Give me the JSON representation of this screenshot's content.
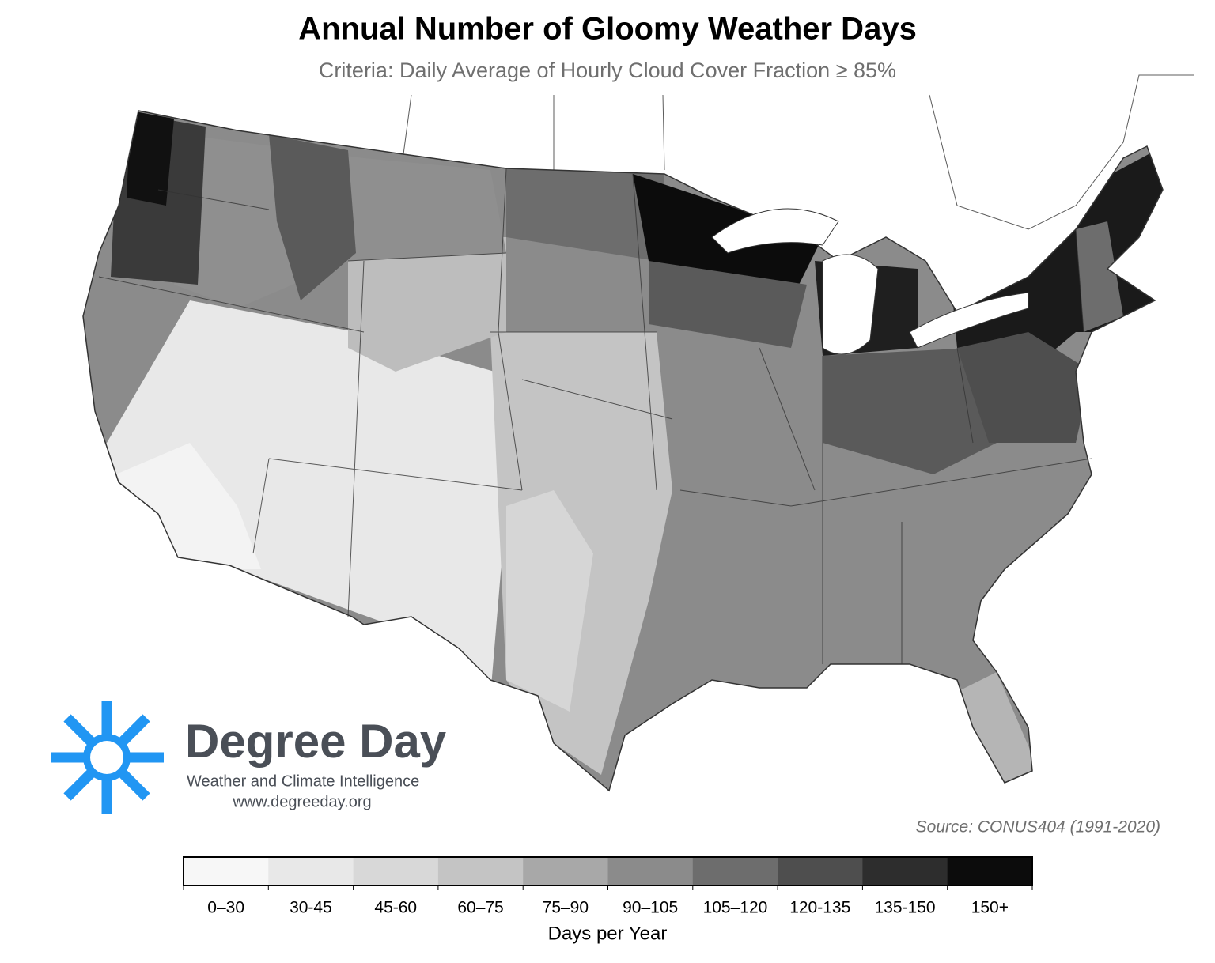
{
  "title": "Annual Number of Gloomy Weather Days",
  "subtitle": "Criteria: Daily Average of Hourly Cloud Cover Fraction ≥ 85%",
  "source": "Source: CONUS404 (1991-2020)",
  "logo": {
    "name": "Degree Day",
    "tagline": "Weather and Climate Intelligence",
    "url": "www.degreeday.org"
  },
  "legend": {
    "title": "Days per Year",
    "bins": [
      {
        "label": "0–30",
        "color": "#f7f7f7"
      },
      {
        "label": "30-45",
        "color": "#e8e8e8"
      },
      {
        "label": "45-60",
        "color": "#d8d8d8"
      },
      {
        "label": "60–75",
        "color": "#c4c4c4"
      },
      {
        "label": "75–90",
        "color": "#a8a8a8"
      },
      {
        "label": "90–105",
        "color": "#8b8b8b"
      },
      {
        "label": "105–120",
        "color": "#6d6d6d"
      },
      {
        "label": "120-135",
        "color": "#4e4e4e"
      },
      {
        "label": "135-150",
        "color": "#2d2d2d"
      },
      {
        "label": "150+",
        "color": "#0c0c0c"
      }
    ]
  }
}
